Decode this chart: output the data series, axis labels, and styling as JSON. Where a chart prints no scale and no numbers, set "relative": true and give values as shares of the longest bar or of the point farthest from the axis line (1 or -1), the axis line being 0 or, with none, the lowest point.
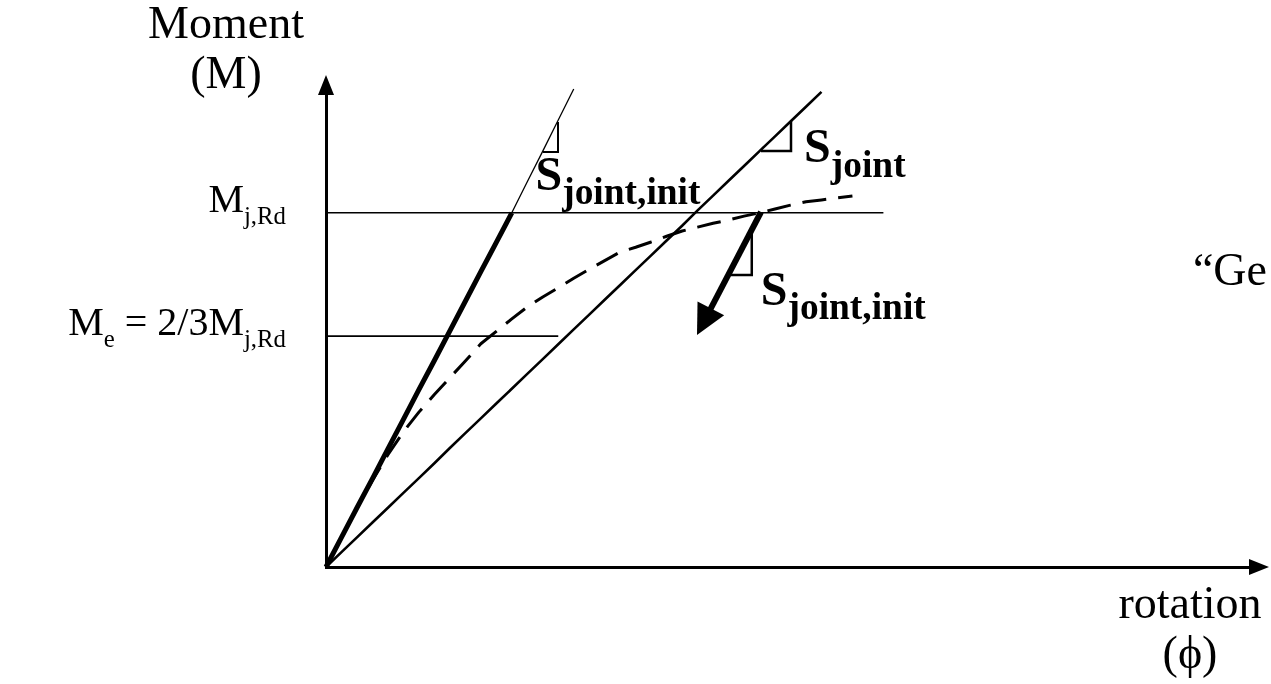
{
  "chart_data": {
    "type": "line",
    "relative": true,
    "tick_labels": false,
    "marker": "none",
    "xlabel": "rotation\n(ϕ)",
    "ylabel": "Moment\n(M)",
    "categories": [
      null,
      null,
      null,
      null,
      null,
      null,
      null,
      null,
      null,
      null,
      null,
      null,
      null,
      null,
      null,
      null,
      null,
      null,
      null,
      null,
      null,
      null,
      null,
      null,
      null,
      null,
      null,
      null,
      null,
      null,
      null,
      null,
      null,
      null,
      null,
      null,
      null,
      null,
      null,
      null,
      null,
      null,
      null,
      null,
      null,
      null,
      null,
      null,
      null,
      null,
      null,
      null,
      null,
      null,
      null,
      null,
      null,
      null,
      null,
      null,
      null
    ],
    "series": [
      {
        "color": "#000000",
        "values": [
          0,
          0.062,
          0.124,
          0.185,
          0.247,
          0.309,
          0.371,
          0.432,
          0.494,
          0.556,
          0.618,
          0.679,
          0.741,
          null,
          null,
          null,
          null,
          null,
          null,
          null,
          null,
          null,
          null,
          null,
          null,
          null,
          null,
          null,
          null,
          null,
          null,
          null,
          null,
          null,
          null,
          null,
          null,
          null,
          null,
          null,
          null,
          null,
          null,
          null,
          null,
          null,
          null,
          null,
          null,
          null,
          null,
          null,
          null,
          null,
          null,
          null,
          null,
          null,
          null,
          null,
          null
        ]
      },
      {
        "color": "#000000",
        "values": [
          null,
          null,
          null,
          null,
          null,
          null,
          null,
          null,
          null,
          null,
          null,
          null,
          0.741,
          0.806,
          0.87,
          0.935,
          1,
          null,
          null,
          null,
          null,
          null,
          null,
          null,
          null,
          null,
          null,
          null,
          null,
          null,
          null,
          null,
          null,
          null,
          null,
          null,
          null,
          null,
          null,
          null,
          null,
          null,
          null,
          null,
          null,
          null,
          null,
          null,
          null,
          null,
          null,
          null,
          null,
          null,
          null,
          null,
          null,
          null,
          null,
          null,
          null
        ]
      },
      {
        "color": "#000000",
        "values": [
          0,
          0.031,
          0.062,
          0.093,
          0.124,
          0.155,
          0.186,
          0.217,
          0.249,
          0.28,
          0.311,
          0.342,
          0.373,
          0.404,
          0.435,
          0.466,
          0.497,
          0.528,
          0.559,
          0.59,
          0.621,
          0.652,
          0.683,
          0.714,
          0.746,
          0.777,
          0.808,
          0.839,
          0.87,
          0.901,
          0.932,
          0.963,
          0.994,
          null,
          null,
          null,
          null,
          null,
          null,
          null,
          null,
          null,
          null,
          null,
          null,
          null,
          null,
          null,
          null,
          null,
          null,
          null,
          null,
          null,
          null,
          null,
          null,
          null,
          null,
          null,
          null
        ]
      },
      {
        "color": "#000000",
        "line_style": "dashed",
        "values": [
          0,
          0.062,
          0.124,
          0.181,
          0.235,
          0.283,
          0.324,
          0.361,
          0.396,
          0.431,
          0.467,
          0.493,
          0.519,
          0.544,
          0.565,
          0.584,
          0.604,
          0.623,
          0.641,
          0.659,
          0.669,
          0.68,
          0.692,
          0.703,
          0.711,
          0.719,
          0.726,
          0.734,
          0.741,
          0.749,
          0.757,
          0.764,
          0.768,
          0.772,
          0.776,
          null,
          null,
          null,
          null,
          null,
          null,
          null,
          null,
          null,
          null,
          null,
          null,
          null,
          null,
          null,
          null,
          null,
          null,
          null,
          null,
          null,
          null,
          null,
          null,
          null,
          null
        ]
      },
      {
        "name": "M$_{j,Rd}$",
        "color": "#000000",
        "values": [
          0.741,
          0.741,
          0.741,
          0.741,
          0.741,
          0.741,
          0.741,
          0.741,
          0.741,
          0.741,
          0.741,
          0.741,
          0.741,
          0.741,
          0.741,
          0.741,
          0.741,
          0.741,
          0.741,
          0.741,
          0.741,
          0.741,
          0.741,
          0.741,
          0.741,
          0.741,
          0.741,
          0.741,
          0.741,
          0.741,
          0.741,
          0.741,
          0.741,
          0.741,
          0.741,
          0.741,
          0.741,
          null,
          null,
          null,
          null,
          null,
          null,
          null,
          null,
          null,
          null,
          null,
          null,
          null,
          null,
          null,
          null,
          null,
          null,
          null,
          null,
          null,
          null,
          null,
          null
        ]
      },
      {
        "name": "M$_{e}$ = 2/3M$_{j,Rd}$",
        "color": "#000000",
        "values": [
          0.483,
          0.483,
          0.483,
          0.483,
          0.483,
          0.483,
          0.483,
          0.483,
          0.483,
          0.483,
          0.483,
          0.483,
          0.483,
          0.483,
          0.483,
          0.483,
          null,
          null,
          null,
          null,
          null,
          null,
          null,
          null,
          null,
          null,
          null,
          null,
          null,
          null,
          null,
          null,
          null,
          null,
          null,
          null,
          null,
          null,
          null,
          null,
          null,
          null,
          null,
          null,
          null,
          null,
          null,
          null,
          null,
          null,
          null,
          null,
          null,
          null,
          null,
          null,
          null,
          null,
          null,
          null,
          null
        ]
      }
    ],
    "annotations": [
      "S$_{joint,init}$",
      "S$_{joint}$",
      "S$_{joint,init}$",
      "“Ge"
    ]
  }
}
